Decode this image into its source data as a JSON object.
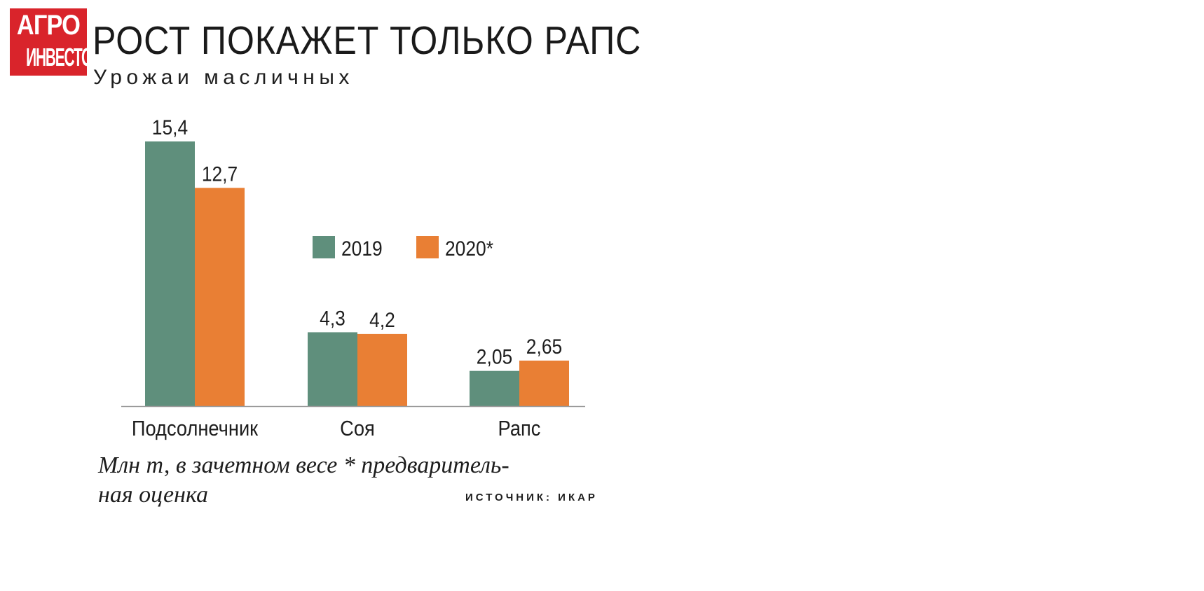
{
  "logo": {
    "line1": "АГРО",
    "line2": "ИНВЕСТОР",
    "color": "#d9242b"
  },
  "title": "РОСТ ПОКАЖЕТ ТОЛЬКО РАПС",
  "subtitle": "Урожаи масличных",
  "note": "Млн т, в зачетном весе  * предваритель-\nная оценка",
  "source": "ИСТОЧНИК: ИКАР",
  "colors": {
    "series_2019": "#5f8f7c",
    "series_2020": "#e97f34",
    "axis": "#9a9a9a"
  },
  "chart_data": {
    "type": "bar",
    "categories": [
      "Подсолнечник",
      "Соя",
      "Рапс"
    ],
    "series": [
      {
        "name": "2019",
        "values": [
          15.4,
          4.3,
          2.05
        ],
        "labels": [
          "15,4",
          "4,3",
          "2,05"
        ]
      },
      {
        "name": "2020*",
        "values": [
          12.7,
          4.2,
          2.65
        ],
        "labels": [
          "12,7",
          "4,2",
          "2,65"
        ]
      }
    ],
    "legend_position": "center",
    "grid": false,
    "ylim": [
      0,
      15.4
    ]
  }
}
